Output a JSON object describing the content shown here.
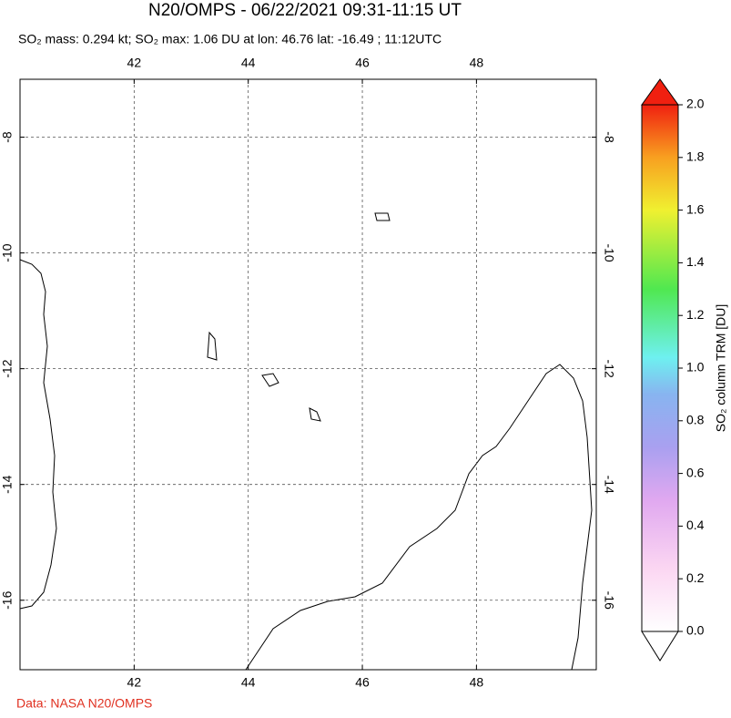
{
  "title": "N20/OMPS - 06/22/2021 09:31-11:15 UT",
  "subtitle": "SO₂ mass: 0.294 kt; SO₂ max: 1.06 DU at lon: 46.76 lat: -16.49 ; 11:12UTC",
  "map": {
    "xlim": [
      40,
      50.1
    ],
    "ylim": [
      -17.2,
      -7
    ],
    "xticks": [
      42,
      44,
      46,
      48
    ],
    "yticks": [
      -8,
      -10,
      -12,
      -14,
      -16
    ],
    "grid": true
  },
  "colorbar": {
    "label": "SO₂ column TRM [DU]",
    "lim": [
      0,
      2
    ],
    "ticks": [
      {
        "value": 0,
        "label": "0.0"
      },
      0.2,
      0.4,
      0.6,
      0.8,
      {
        "value": 1,
        "label": "1.0"
      },
      1.2,
      1.4,
      1.6,
      1.8,
      {
        "value": 2,
        "label": "2.0"
      }
    ]
  },
  "credit": "Data: NASA N20/OMPS"
}
